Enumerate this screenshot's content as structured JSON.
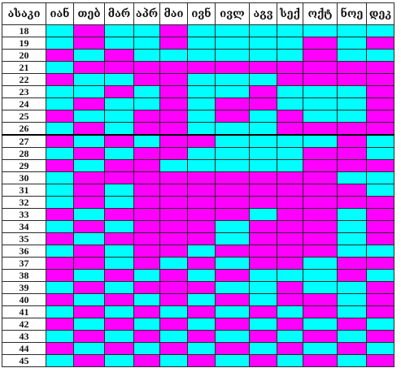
{
  "colors": {
    "cyan": "#00ffff",
    "magenta": "#ff00ff"
  },
  "table": {
    "age_header": "ასაკი",
    "months": [
      "იან",
      "თებ",
      "მარ",
      "აპრ",
      "მაი",
      "ივნ",
      "ივლ",
      "აგვ",
      "სექ",
      "ოქტ",
      "ნოე",
      "დეკ"
    ],
    "rows": [
      {
        "age": "18",
        "cells": [
          "c",
          "m",
          "c",
          "c",
          "m",
          "c",
          "c",
          "c",
          "c",
          "c",
          "c",
          "c"
        ]
      },
      {
        "age": "19",
        "cells": [
          "c",
          "m",
          "c",
          "c",
          "m",
          "c",
          "c",
          "c",
          "c",
          "m",
          "c",
          "m"
        ]
      },
      {
        "age": "20",
        "cells": [
          "m",
          "c",
          "m",
          "c",
          "c",
          "c",
          "c",
          "c",
          "c",
          "m",
          "c",
          "c"
        ]
      },
      {
        "age": "21",
        "cells": [
          "c",
          "m",
          "m",
          "m",
          "m",
          "m",
          "m",
          "m",
          "m",
          "m",
          "m",
          "m"
        ]
      },
      {
        "age": "22",
        "cells": [
          "m",
          "c",
          "c",
          "m",
          "m",
          "c",
          "c",
          "c",
          "m",
          "m",
          "m",
          "m"
        ]
      },
      {
        "age": "23",
        "cells": [
          "c",
          "c",
          "m",
          "c",
          "m",
          "c",
          "c",
          "m",
          "c",
          "c",
          "c",
          "m"
        ]
      },
      {
        "age": "24",
        "cells": [
          "c",
          "m",
          "c",
          "c",
          "m",
          "c",
          "m",
          "m",
          "c",
          "c",
          "c",
          "m"
        ]
      },
      {
        "age": "25",
        "cells": [
          "m",
          "c",
          "c",
          "m",
          "m",
          "c",
          "m",
          "c",
          "m",
          "c",
          "c",
          "m"
        ]
      },
      {
        "age": "26",
        "cells": [
          "c",
          "m",
          "c",
          "m",
          "m",
          "c",
          "c",
          "c",
          "m",
          "m",
          "m",
          "m"
        ]
      },
      {
        "age": "27",
        "cells": [
          "m",
          "c",
          "m",
          "c",
          "m",
          "m",
          "c",
          "c",
          "c",
          "c",
          "m",
          "c"
        ]
      },
      {
        "age": "28",
        "cells": [
          "c",
          "m",
          "c",
          "m",
          "m",
          "c",
          "c",
          "c",
          "c",
          "m",
          "m",
          "c"
        ]
      },
      {
        "age": "29",
        "cells": [
          "m",
          "c",
          "m",
          "m",
          "c",
          "c",
          "c",
          "c",
          "c",
          "m",
          "m",
          "m"
        ]
      },
      {
        "age": "30",
        "cells": [
          "c",
          "m",
          "m",
          "m",
          "m",
          "m",
          "m",
          "m",
          "m",
          "m",
          "c",
          "c"
        ]
      },
      {
        "age": "31",
        "cells": [
          "c",
          "m",
          "c",
          "m",
          "m",
          "m",
          "m",
          "m",
          "m",
          "m",
          "m",
          "c"
        ]
      },
      {
        "age": "32",
        "cells": [
          "c",
          "m",
          "c",
          "m",
          "m",
          "m",
          "m",
          "m",
          "m",
          "m",
          "m",
          "m"
        ]
      },
      {
        "age": "33",
        "cells": [
          "m",
          "c",
          "m",
          "m",
          "m",
          "m",
          "m",
          "c",
          "m",
          "m",
          "c",
          "m"
        ]
      },
      {
        "age": "34",
        "cells": [
          "c",
          "m",
          "c",
          "m",
          "m",
          "m",
          "c",
          "m",
          "m",
          "m",
          "c",
          "m"
        ]
      },
      {
        "age": "35",
        "cells": [
          "m",
          "c",
          "m",
          "m",
          "m",
          "m",
          "c",
          "m",
          "m",
          "m",
          "c",
          "m"
        ]
      },
      {
        "age": "36",
        "cells": [
          "c",
          "m",
          "c",
          "m",
          "m",
          "c",
          "m",
          "m",
          "m",
          "m",
          "c",
          "c"
        ]
      },
      {
        "age": "37",
        "cells": [
          "m",
          "m",
          "c",
          "m",
          "c",
          "m",
          "c",
          "m",
          "m",
          "c",
          "m",
          "m"
        ]
      },
      {
        "age": "38",
        "cells": [
          "m",
          "c",
          "m",
          "c",
          "m",
          "c",
          "m",
          "c",
          "c",
          "c",
          "m",
          "c"
        ]
      },
      {
        "age": "39",
        "cells": [
          "c",
          "m",
          "c",
          "m",
          "m",
          "m",
          "c",
          "c",
          "m",
          "c",
          "c",
          "m"
        ]
      },
      {
        "age": "40",
        "cells": [
          "m",
          "c",
          "m",
          "c",
          "m",
          "c",
          "m",
          "c",
          "m",
          "m",
          "c",
          "m"
        ]
      },
      {
        "age": "41",
        "cells": [
          "c",
          "m",
          "c",
          "m",
          "c",
          "m",
          "c",
          "m",
          "c",
          "m",
          "c",
          "m"
        ]
      },
      {
        "age": "42",
        "cells": [
          "m",
          "c",
          "m",
          "c",
          "m",
          "c",
          "m",
          "c",
          "m",
          "c",
          "m",
          "c"
        ]
      },
      {
        "age": "43",
        "cells": [
          "c",
          "m",
          "c",
          "m",
          "c",
          "m",
          "c",
          "m",
          "c",
          "m",
          "c",
          "m"
        ]
      },
      {
        "age": "44",
        "cells": [
          "m",
          "c",
          "m",
          "c",
          "m",
          "c",
          "m",
          "c",
          "m",
          "c",
          "m",
          "c"
        ]
      },
      {
        "age": "45",
        "cells": [
          "c",
          "m",
          "c",
          "m",
          "c",
          "m",
          "c",
          "m",
          "c",
          "m",
          "c",
          "m"
        ]
      }
    ]
  }
}
